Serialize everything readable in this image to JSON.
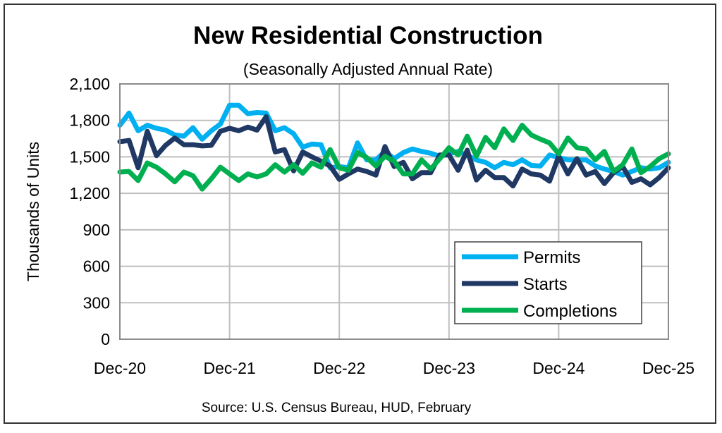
{
  "chart_data": {
    "type": "line",
    "title": "New Residential Construction",
    "subtitle": "(Seasonally Adjusted Annual Rate)",
    "xlabel": "",
    "ylabel": "Thousands of Units",
    "source": "Source:  U.S. Census Bureau, HUD, February",
    "ylim": [
      0,
      2100
    ],
    "yticks": [
      "0",
      "300",
      "600",
      "900",
      "1,200",
      "1,500",
      "1,800",
      "2,100"
    ],
    "ytick_values": [
      0,
      300,
      600,
      900,
      1200,
      1500,
      1800,
      2100
    ],
    "xticks": [
      "Dec-20",
      "Dec-21",
      "Dec-22",
      "Dec-23",
      "Dec-24",
      "Dec-25"
    ],
    "x_range": [
      "Dec-20",
      "Dec-25"
    ],
    "x_frequency": "monthly",
    "grid": true,
    "legend_position": "bottom-right",
    "series": [
      {
        "name": "Permits",
        "color": "#00b0f0",
        "values": [
          1760,
          1860,
          1715,
          1760,
          1735,
          1720,
          1680,
          1670,
          1740,
          1645,
          1715,
          1770,
          1925,
          1925,
          1855,
          1865,
          1860,
          1715,
          1740,
          1690,
          1580,
          1605,
          1600,
          1410,
          1420,
          1410,
          1615,
          1475,
          1475,
          1545,
          1485,
          1535,
          1565,
          1545,
          1530,
          1505,
          1525,
          1545,
          1510,
          1475,
          1455,
          1410,
          1455,
          1435,
          1475,
          1430,
          1425,
          1515,
          1495,
          1475,
          1475,
          1475,
          1425,
          1400,
          1380,
          1350,
          1380,
          1410,
          1400,
          1410,
          1455
        ]
      },
      {
        "name": "Starts",
        "color": "#203864",
        "values": [
          1625,
          1635,
          1410,
          1710,
          1510,
          1595,
          1655,
          1600,
          1600,
          1590,
          1595,
          1710,
          1735,
          1715,
          1745,
          1720,
          1830,
          1540,
          1560,
          1385,
          1540,
          1500,
          1465,
          1425,
          1315,
          1360,
          1400,
          1380,
          1350,
          1585,
          1420,
          1455,
          1320,
          1370,
          1370,
          1515,
          1515,
          1390,
          1555,
          1310,
          1390,
          1330,
          1330,
          1260,
          1400,
          1360,
          1350,
          1300,
          1505,
          1360,
          1485,
          1350,
          1380,
          1280,
          1370,
          1420,
          1290,
          1320,
          1270,
          1330,
          1410
        ]
      },
      {
        "name": "Completions",
        "color": "#00b050",
        "values": [
          1375,
          1380,
          1305,
          1450,
          1415,
          1360,
          1295,
          1375,
          1345,
          1235,
          1320,
          1415,
          1360,
          1305,
          1360,
          1335,
          1360,
          1435,
          1375,
          1435,
          1365,
          1450,
          1415,
          1560,
          1410,
          1390,
          1535,
          1495,
          1425,
          1505,
          1465,
          1360,
          1360,
          1475,
          1400,
          1485,
          1575,
          1515,
          1670,
          1505,
          1660,
          1575,
          1730,
          1635,
          1760,
          1680,
          1645,
          1615,
          1525,
          1655,
          1575,
          1565,
          1475,
          1545,
          1380,
          1435,
          1565,
          1370,
          1420,
          1485,
          1525
        ]
      }
    ]
  }
}
